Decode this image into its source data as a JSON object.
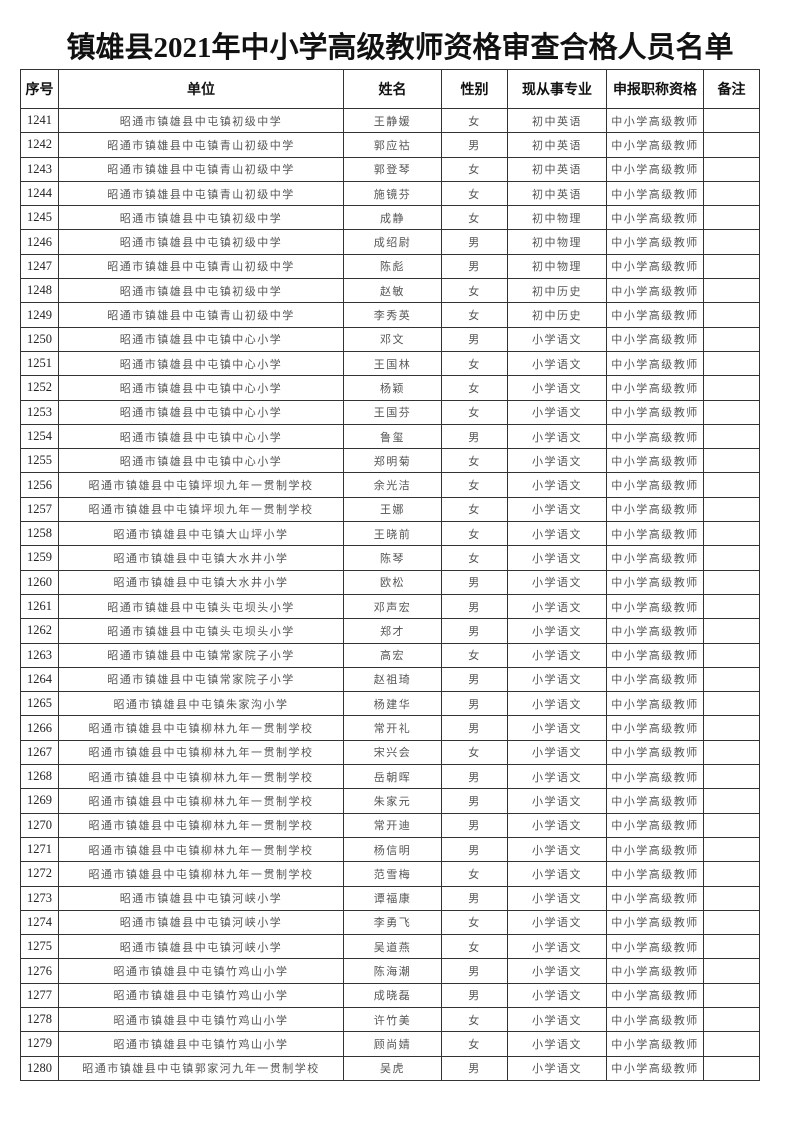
{
  "title": "镇雄县2021年中小学高级教师资格审查合格人员名单",
  "headers": [
    "序号",
    "单位",
    "姓名",
    "性别",
    "现从事专业",
    "申报职称资格",
    "备注"
  ],
  "rows": [
    [
      "1241",
      "昭通市镇雄县中屯镇初级中学",
      "王静媛",
      "女",
      "初中英语",
      "中小学高级教师",
      ""
    ],
    [
      "1242",
      "昭通市镇雄县中屯镇青山初级中学",
      "郭应祜",
      "男",
      "初中英语",
      "中小学高级教师",
      ""
    ],
    [
      "1243",
      "昭通市镇雄县中屯镇青山初级中学",
      "郭登琴",
      "女",
      "初中英语",
      "中小学高级教师",
      ""
    ],
    [
      "1244",
      "昭通市镇雄县中屯镇青山初级中学",
      "施镜芬",
      "女",
      "初中英语",
      "中小学高级教师",
      ""
    ],
    [
      "1245",
      "昭通市镇雄县中屯镇初级中学",
      "成静",
      "女",
      "初中物理",
      "中小学高级教师",
      ""
    ],
    [
      "1246",
      "昭通市镇雄县中屯镇初级中学",
      "成绍尉",
      "男",
      "初中物理",
      "中小学高级教师",
      ""
    ],
    [
      "1247",
      "昭通市镇雄县中屯镇青山初级中学",
      "陈彪",
      "男",
      "初中物理",
      "中小学高级教师",
      ""
    ],
    [
      "1248",
      "昭通市镇雄县中屯镇初级中学",
      "赵敏",
      "女",
      "初中历史",
      "中小学高级教师",
      ""
    ],
    [
      "1249",
      "昭通市镇雄县中屯镇青山初级中学",
      "李秀英",
      "女",
      "初中历史",
      "中小学高级教师",
      ""
    ],
    [
      "1250",
      "昭通市镇雄县中屯镇中心小学",
      "邓文",
      "男",
      "小学语文",
      "中小学高级教师",
      ""
    ],
    [
      "1251",
      "昭通市镇雄县中屯镇中心小学",
      "王国林",
      "女",
      "小学语文",
      "中小学高级教师",
      ""
    ],
    [
      "1252",
      "昭通市镇雄县中屯镇中心小学",
      "杨颖",
      "女",
      "小学语文",
      "中小学高级教师",
      ""
    ],
    [
      "1253",
      "昭通市镇雄县中屯镇中心小学",
      "王国芬",
      "女",
      "小学语文",
      "中小学高级教师",
      ""
    ],
    [
      "1254",
      "昭通市镇雄县中屯镇中心小学",
      "鲁玺",
      "男",
      "小学语文",
      "中小学高级教师",
      ""
    ],
    [
      "1255",
      "昭通市镇雄县中屯镇中心小学",
      "郑明菊",
      "女",
      "小学语文",
      "中小学高级教师",
      ""
    ],
    [
      "1256",
      "昭通市镇雄县中屯镇坪坝九年一贯制学校",
      "余光洁",
      "女",
      "小学语文",
      "中小学高级教师",
      ""
    ],
    [
      "1257",
      "昭通市镇雄县中屯镇坪坝九年一贯制学校",
      "王娜",
      "女",
      "小学语文",
      "中小学高级教师",
      ""
    ],
    [
      "1258",
      "昭通市镇雄县中屯镇大山坪小学",
      "王晓前",
      "女",
      "小学语文",
      "中小学高级教师",
      ""
    ],
    [
      "1259",
      "昭通市镇雄县中屯镇大水井小学",
      "陈琴",
      "女",
      "小学语文",
      "中小学高级教师",
      ""
    ],
    [
      "1260",
      "昭通市镇雄县中屯镇大水井小学",
      "欧松",
      "男",
      "小学语文",
      "中小学高级教师",
      ""
    ],
    [
      "1261",
      "昭通市镇雄县中屯镇头屯坝头小学",
      "邓声宏",
      "男",
      "小学语文",
      "中小学高级教师",
      ""
    ],
    [
      "1262",
      "昭通市镇雄县中屯镇头屯坝头小学",
      "郑才",
      "男",
      "小学语文",
      "中小学高级教师",
      ""
    ],
    [
      "1263",
      "昭通市镇雄县中屯镇常家院子小学",
      "高宏",
      "女",
      "小学语文",
      "中小学高级教师",
      ""
    ],
    [
      "1264",
      "昭通市镇雄县中屯镇常家院子小学",
      "赵祖琦",
      "男",
      "小学语文",
      "中小学高级教师",
      ""
    ],
    [
      "1265",
      "昭通市镇雄县中屯镇朱家沟小学",
      "杨建华",
      "男",
      "小学语文",
      "中小学高级教师",
      ""
    ],
    [
      "1266",
      "昭通市镇雄县中屯镇柳林九年一贯制学校",
      "常开礼",
      "男",
      "小学语文",
      "中小学高级教师",
      ""
    ],
    [
      "1267",
      "昭通市镇雄县中屯镇柳林九年一贯制学校",
      "宋兴会",
      "女",
      "小学语文",
      "中小学高级教师",
      ""
    ],
    [
      "1268",
      "昭通市镇雄县中屯镇柳林九年一贯制学校",
      "岳朝晖",
      "男",
      "小学语文",
      "中小学高级教师",
      ""
    ],
    [
      "1269",
      "昭通市镇雄县中屯镇柳林九年一贯制学校",
      "朱家元",
      "男",
      "小学语文",
      "中小学高级教师",
      ""
    ],
    [
      "1270",
      "昭通市镇雄县中屯镇柳林九年一贯制学校",
      "常开迪",
      "男",
      "小学语文",
      "中小学高级教师",
      ""
    ],
    [
      "1271",
      "昭通市镇雄县中屯镇柳林九年一贯制学校",
      "杨信明",
      "男",
      "小学语文",
      "中小学高级教师",
      ""
    ],
    [
      "1272",
      "昭通市镇雄县中屯镇柳林九年一贯制学校",
      "范雪梅",
      "女",
      "小学语文",
      "中小学高级教师",
      ""
    ],
    [
      "1273",
      "昭通市镇雄县中屯镇河峡小学",
      "谭福康",
      "男",
      "小学语文",
      "中小学高级教师",
      ""
    ],
    [
      "1274",
      "昭通市镇雄县中屯镇河峡小学",
      "李勇飞",
      "女",
      "小学语文",
      "中小学高级教师",
      ""
    ],
    [
      "1275",
      "昭通市镇雄县中屯镇河峡小学",
      "吴道燕",
      "女",
      "小学语文",
      "中小学高级教师",
      ""
    ],
    [
      "1276",
      "昭通市镇雄县中屯镇竹鸡山小学",
      "陈海潮",
      "男",
      "小学语文",
      "中小学高级教师",
      ""
    ],
    [
      "1277",
      "昭通市镇雄县中屯镇竹鸡山小学",
      "成晓磊",
      "男",
      "小学语文",
      "中小学高级教师",
      ""
    ],
    [
      "1278",
      "昭通市镇雄县中屯镇竹鸡山小学",
      "许竹美",
      "女",
      "小学语文",
      "中小学高级教师",
      ""
    ],
    [
      "1279",
      "昭通市镇雄县中屯镇竹鸡山小学",
      "顾尚婧",
      "女",
      "小学语文",
      "中小学高级教师",
      ""
    ],
    [
      "1280",
      "昭通市镇雄县中屯镇郭家河九年一贯制学校",
      "吴虎",
      "男",
      "小学语文",
      "中小学高级教师",
      ""
    ]
  ]
}
